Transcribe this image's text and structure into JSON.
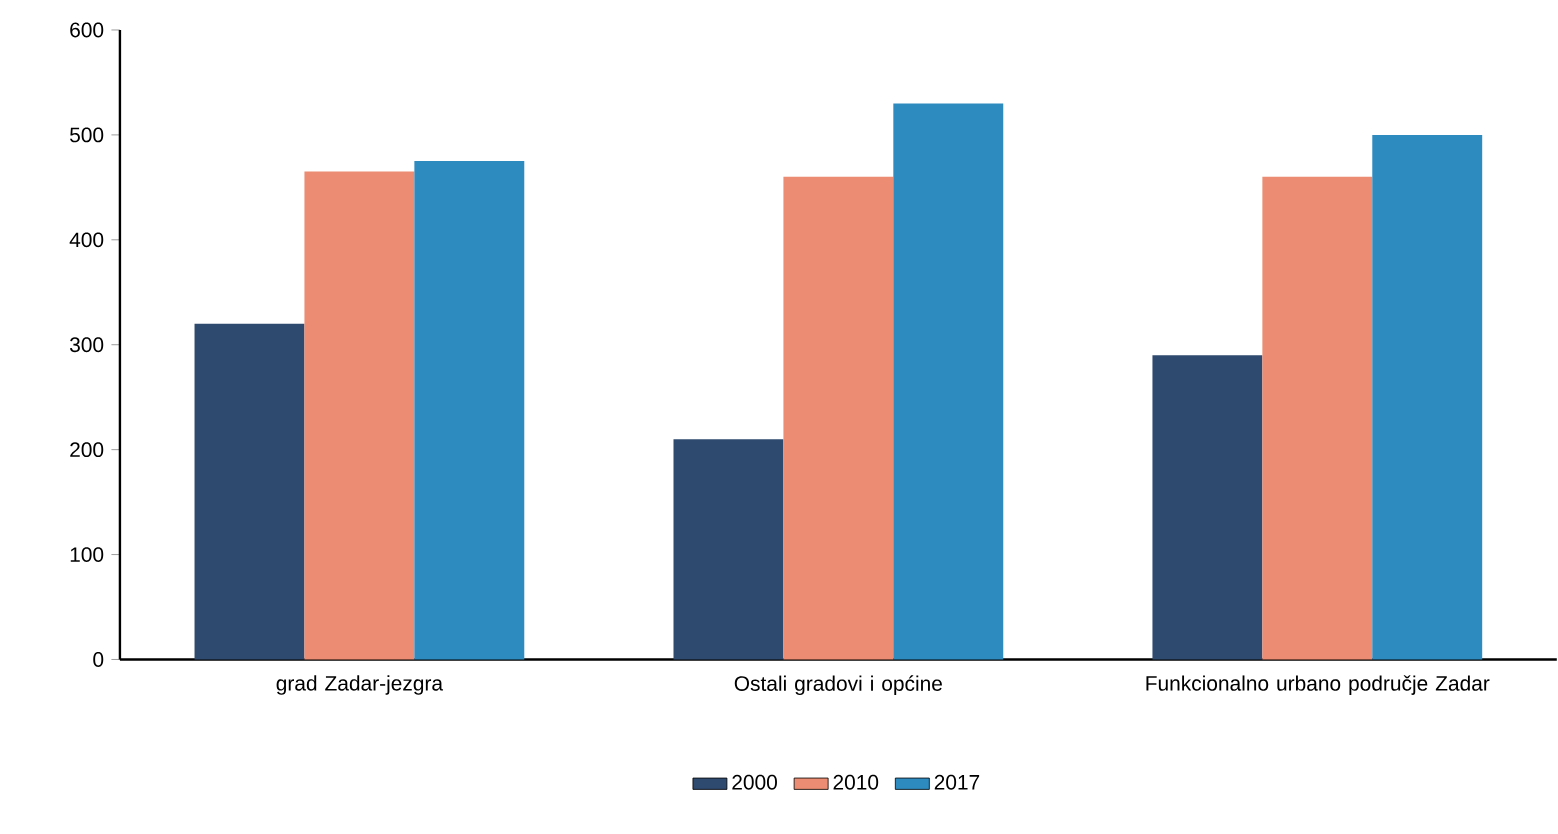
{
  "chart_data": {
    "type": "bar",
    "categories": [
      "grad Zadar-jezgra",
      "Ostali gradovi i općine",
      "Funkcionalno urbano područje Zadar"
    ],
    "series": [
      {
        "name": "2000",
        "color": "#2e4a6e",
        "values": [
          320,
          210,
          290
        ]
      },
      {
        "name": "2010",
        "color": "#ec8c72",
        "values": [
          465,
          460,
          460
        ]
      },
      {
        "name": "2017",
        "color": "#2e8bc0",
        "values": [
          475,
          530,
          500
        ]
      }
    ],
    "ylim": [
      0,
      600
    ],
    "yticks": [
      0,
      100,
      200,
      300,
      400,
      500,
      600
    ],
    "legend": "bottom"
  }
}
